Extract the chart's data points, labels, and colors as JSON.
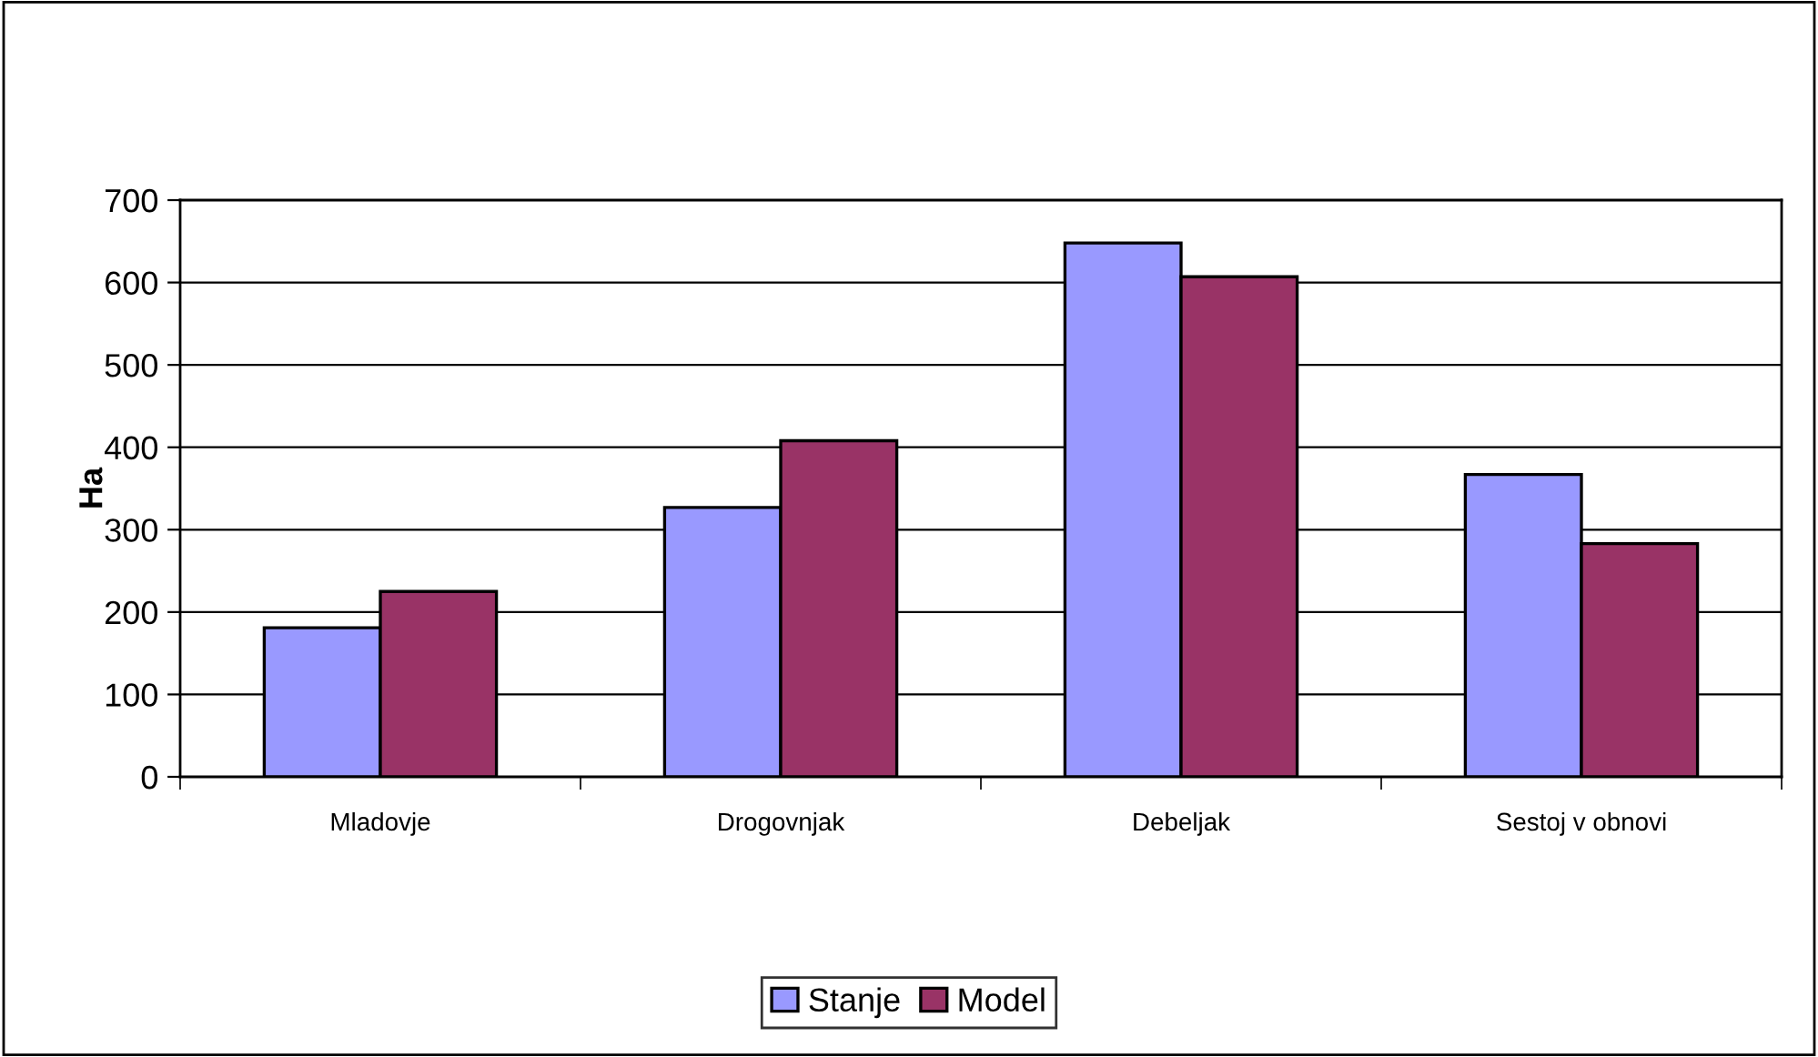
{
  "chart_data": {
    "type": "bar",
    "ylabel": "Ha",
    "categories": [
      "Mladovje",
      "Drogovnjak",
      "Debeljak",
      "Sestoj v obnovi"
    ],
    "series": [
      {
        "name": "Stanje",
        "color": "#9999ff",
        "values": [
          181,
          327,
          648,
          367
        ]
      },
      {
        "name": "Model",
        "color": "#993366",
        "values": [
          225,
          408,
          607,
          283
        ]
      }
    ],
    "ylim": [
      0,
      700
    ],
    "yticks": [
      0,
      100,
      200,
      300,
      400,
      500,
      600,
      700
    ],
    "grid": "y",
    "legend": "bottom"
  }
}
